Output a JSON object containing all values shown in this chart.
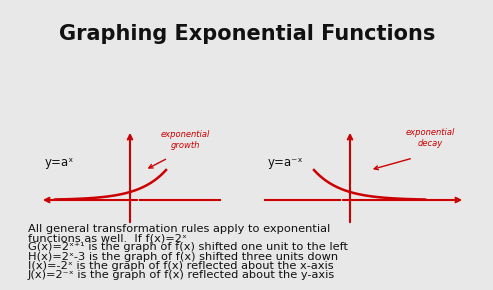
{
  "background_color": "#e8e8e8",
  "title": "Graphing Exponential Functions",
  "title_fontsize": 15,
  "title_color": "#111111",
  "body_fontsize": 8.2,
  "body_color": "#111111",
  "label_fontsize": 8.5,
  "handwritten_color": "#cc0000",
  "handwritten_annot_fontsize": 6.0,
  "curve1_annot": "exponential\ngrowth",
  "curve2_annot": "exponential\ndecay",
  "label_left_text": "y=aˣ",
  "label_right_text": "y=a⁻ˣ",
  "body_lines": [
    "All general transformation rules apply to exponential",
    "functions as well.  If f(x)=2ˣ",
    "G(x)=2ˣ⁺¹ is the graph of f(x) shifted one unit to the left",
    "H(x)=2ˣ-3 is the graph of f(x) shifted three units down",
    "I(x)=-2ˣ is the graph of f(x) reflected about the x-axis",
    "J(x)=2⁻ˣ is the graph of f(x) reflected about the y-axis"
  ]
}
